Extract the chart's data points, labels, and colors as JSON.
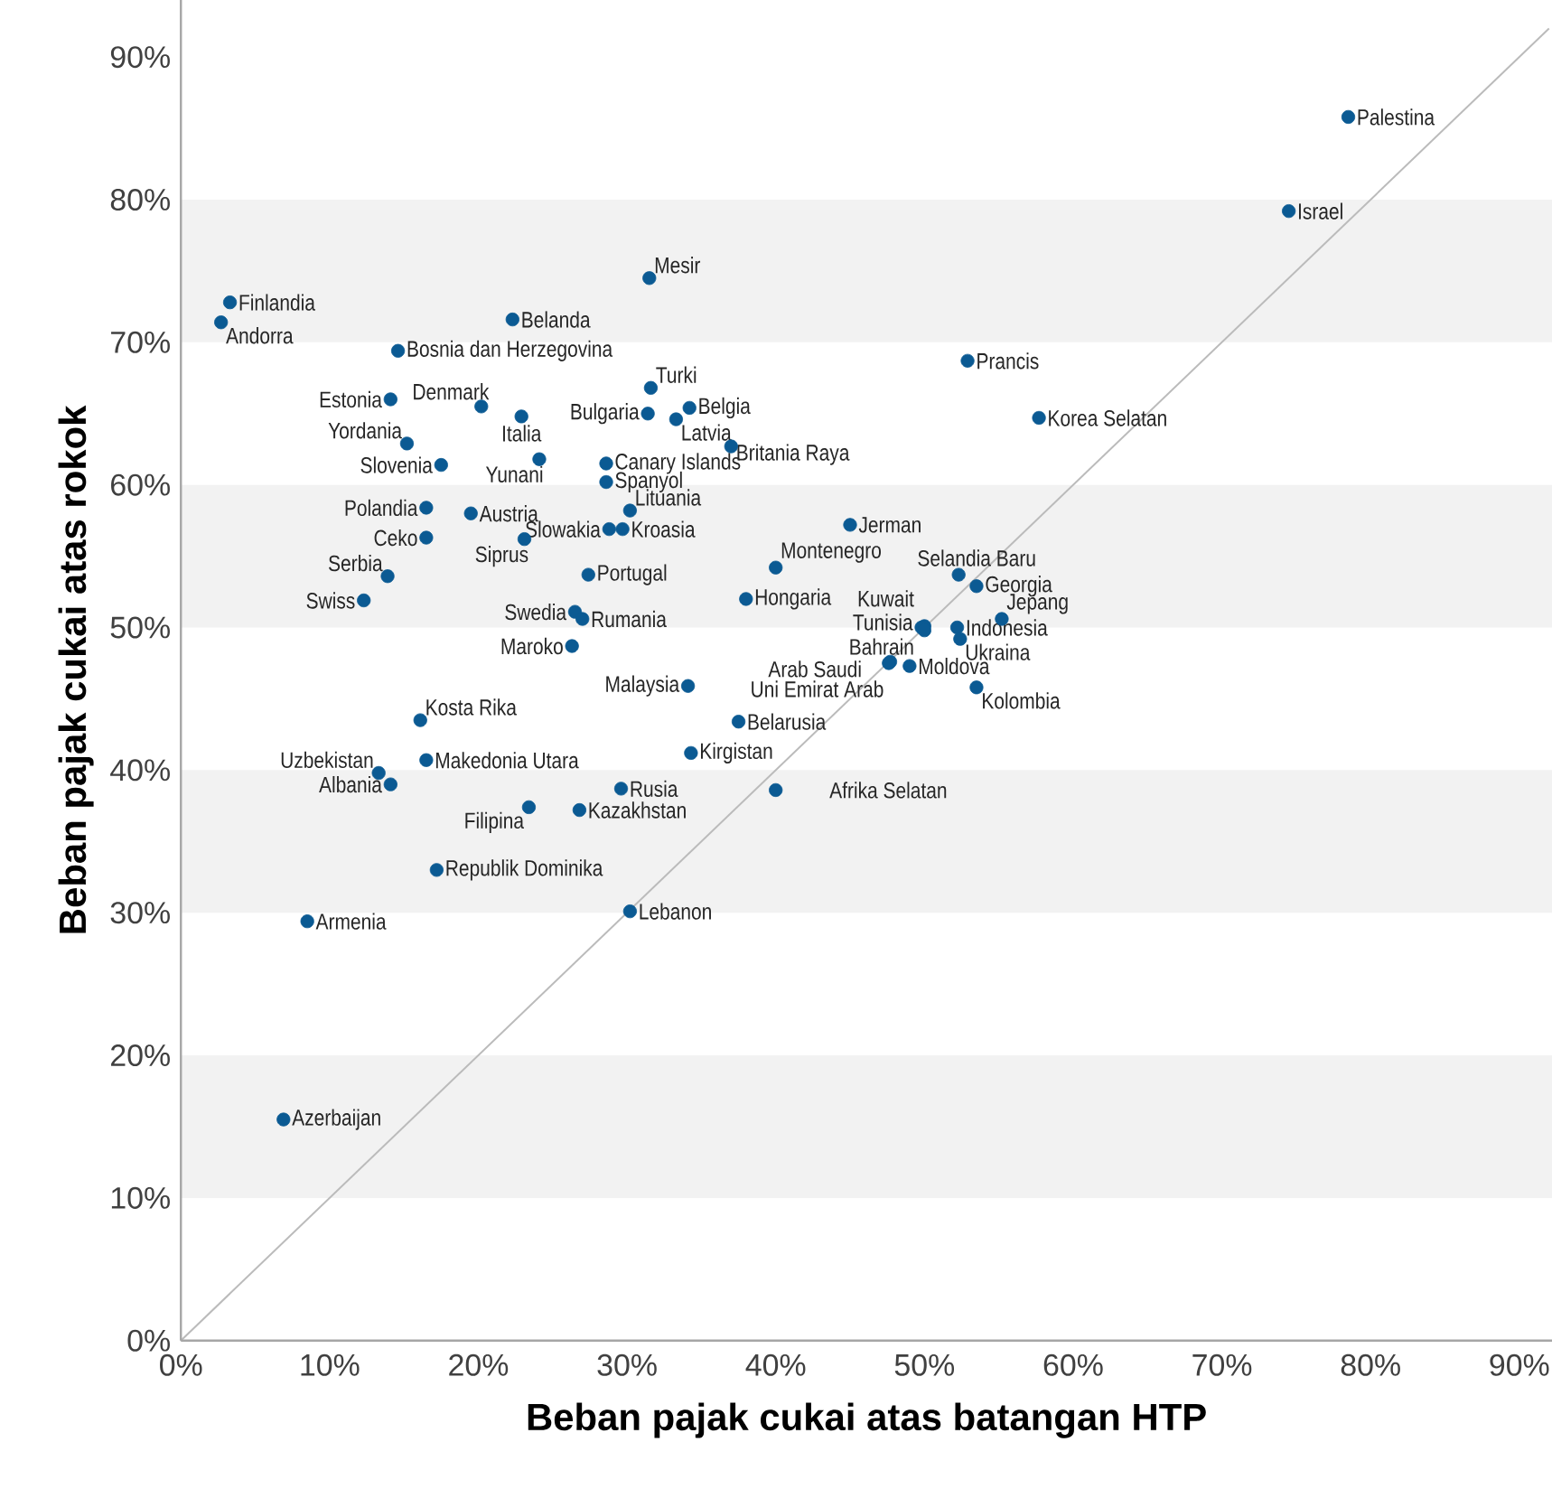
{
  "chart_data": {
    "type": "scatter",
    "xlabel": "Beban pajak cukai atas batangan HTP",
    "ylabel": "Beban pajak cukai atas rokok",
    "xlim": [
      0,
      92.2
    ],
    "ylim": [
      0,
      94
    ],
    "xticks": [
      {
        "value": 0,
        "label": "0%"
      },
      {
        "value": 10,
        "label": "10%"
      },
      {
        "value": 20,
        "label": "20%"
      },
      {
        "value": 30,
        "label": "30%"
      },
      {
        "value": 40,
        "label": "40%"
      },
      {
        "value": 50,
        "label": "50%"
      },
      {
        "value": 60,
        "label": "60%"
      },
      {
        "value": 70,
        "label": "70%"
      },
      {
        "value": 80,
        "label": "80%"
      },
      {
        "value": 90,
        "label": "90%"
      }
    ],
    "yticks": [
      {
        "value": 0,
        "label": "0%"
      },
      {
        "value": 10,
        "label": "10%"
      },
      {
        "value": 20,
        "label": "20%"
      },
      {
        "value": 30,
        "label": "30%"
      },
      {
        "value": 40,
        "label": "40%"
      },
      {
        "value": 50,
        "label": "50%"
      },
      {
        "value": 60,
        "label": "60%"
      },
      {
        "value": 70,
        "label": "70%"
      },
      {
        "value": 80,
        "label": "80%"
      },
      {
        "value": 90,
        "label": "90%"
      }
    ],
    "grid": false,
    "bands": [
      {
        "axis": "y",
        "from": 10,
        "to": 20,
        "color": "#f2f2f2"
      },
      {
        "axis": "y",
        "from": 30,
        "to": 40,
        "color": "#f2f2f2"
      },
      {
        "axis": "y",
        "from": 50,
        "to": 60,
        "color": "#f2f2f2"
      },
      {
        "axis": "y",
        "from": 70,
        "to": 80,
        "color": "#f2f2f2"
      }
    ],
    "series": [
      {
        "color": "#0b5a93",
        "x": [
          78.5,
          74.5,
          3.3,
          2.7,
          31.5,
          22.3,
          14.6,
          52.9,
          14.1,
          20.2,
          22.9,
          31.6,
          31.4,
          34.2,
          33.3,
          57.7,
          15.2,
          17.5,
          24.1,
          37.0,
          28.6,
          28.6,
          16.5,
          19.5,
          30.2,
          45.0,
          16.5,
          23.1,
          28.8,
          29.7,
          52.3,
          40.0,
          27.4,
          53.5,
          13.9,
          12.3,
          38.0,
          50.0,
          49.8,
          50.0,
          52.2,
          52.4,
          55.2,
          47.7,
          47.6,
          49.0,
          53.5,
          26.3,
          26.5,
          27.0,
          34.1,
          16.1,
          37.5,
          13.3,
          14.1,
          16.5,
          34.3,
          23.4,
          29.6,
          26.8,
          40.0,
          17.2,
          8.5,
          30.2,
          6.9
        ],
        "values": [
          85.8,
          79.2,
          72.8,
          71.4,
          74.5,
          71.6,
          69.4,
          68.7,
          66.0,
          65.5,
          64.8,
          66.8,
          65.0,
          65.4,
          64.6,
          64.7,
          62.9,
          61.4,
          61.8,
          62.7,
          61.5,
          60.2,
          58.4,
          58.0,
          58.2,
          57.2,
          56.3,
          56.2,
          56.9,
          56.9,
          53.7,
          54.2,
          53.7,
          52.9,
          53.6,
          51.9,
          52.0,
          50.1,
          50.0,
          49.8,
          50.0,
          49.2,
          50.6,
          47.6,
          47.5,
          47.3,
          45.8,
          48.7,
          51.1,
          50.6,
          45.9,
          43.5,
          43.4,
          39.8,
          39.0,
          40.7,
          41.2,
          37.4,
          38.7,
          37.2,
          38.6,
          33.0,
          29.4,
          30.1,
          15.5
        ]
      },
      {
        "type": "line",
        "color": "#bbbbbb",
        "x": [
          0,
          92
        ],
        "values": [
          0,
          92
        ]
      }
    ],
    "annotations": [
      {
        "text": "Palestina",
        "x": 78.5,
        "y": 85.8
      },
      {
        "text": "Israel",
        "x": 74.5,
        "y": 79.2
      },
      {
        "text": "Finlandia",
        "x": 3.3,
        "y": 72.8
      },
      {
        "text": "Andorra",
        "x": 2.7,
        "y": 71.4
      },
      {
        "text": "Mesir",
        "x": 31.5,
        "y": 74.5
      },
      {
        "text": "Belanda",
        "x": 22.3,
        "y": 71.6
      },
      {
        "text": "Bosnia dan Herzegovina",
        "x": 14.6,
        "y": 69.4
      },
      {
        "text": "Prancis",
        "x": 52.9,
        "y": 68.7
      },
      {
        "text": "Estonia",
        "x": 14.1,
        "y": 66.0
      },
      {
        "text": "Denmark",
        "x": 20.2,
        "y": 65.5
      },
      {
        "text": "Italia",
        "x": 22.9,
        "y": 64.8
      },
      {
        "text": "Turki",
        "x": 31.6,
        "y": 66.8
      },
      {
        "text": "Bulgaria",
        "x": 31.4,
        "y": 65.0
      },
      {
        "text": "Belgia",
        "x": 34.2,
        "y": 65.4
      },
      {
        "text": "Latvia",
        "x": 33.3,
        "y": 64.6
      },
      {
        "text": "Korea Selatan",
        "x": 57.7,
        "y": 64.7
      },
      {
        "text": "Yordania",
        "x": 15.2,
        "y": 62.9
      },
      {
        "text": "Slovenia",
        "x": 17.5,
        "y": 61.4
      },
      {
        "text": "Yunani",
        "x": 24.1,
        "y": 61.8
      },
      {
        "text": "Britania Raya",
        "x": 37.0,
        "y": 62.7
      },
      {
        "text": "Canary Islands",
        "x": 28.6,
        "y": 61.5
      },
      {
        "text": "Spanyol",
        "x": 28.6,
        "y": 60.2
      },
      {
        "text": "Polandia",
        "x": 16.5,
        "y": 58.4
      },
      {
        "text": "Austria",
        "x": 19.5,
        "y": 58.0
      },
      {
        "text": "Lituania",
        "x": 30.2,
        "y": 58.2
      },
      {
        "text": "Jerman",
        "x": 45.0,
        "y": 57.2
      },
      {
        "text": "Ceko",
        "x": 16.5,
        "y": 56.3
      },
      {
        "text": "Siprus",
        "x": 23.1,
        "y": 56.2
      },
      {
        "text": "Slowakia",
        "x": 28.8,
        "y": 56.9
      },
      {
        "text": "Kroasia",
        "x": 29.7,
        "y": 56.9
      },
      {
        "text": "Selandia Baru",
        "x": 52.3,
        "y": 53.7
      },
      {
        "text": "Montenegro",
        "x": 40.0,
        "y": 54.2
      },
      {
        "text": "Portugal",
        "x": 27.4,
        "y": 53.7
      },
      {
        "text": "Georgia",
        "x": 53.5,
        "y": 52.9
      },
      {
        "text": "Serbia",
        "x": 13.9,
        "y": 53.6
      },
      {
        "text": "Swiss",
        "x": 12.3,
        "y": 51.9
      },
      {
        "text": "Hongaria",
        "x": 38.0,
        "y": 52.0
      },
      {
        "text": "Kuwait",
        "x": 50.0,
        "y": 50.1
      },
      {
        "text": "Tunisia",
        "x": 49.8,
        "y": 50.0
      },
      {
        "text": "Bahrain",
        "x": 50.0,
        "y": 49.8
      },
      {
        "text": "Indonesia",
        "x": 52.2,
        "y": 50.0
      },
      {
        "text": "Ukraina",
        "x": 52.4,
        "y": 49.2
      },
      {
        "text": "Jepang",
        "x": 55.2,
        "y": 50.6
      },
      {
        "text": "Arab Saudi",
        "x": 47.7,
        "y": 47.6
      },
      {
        "text": "Uni Emirat Arab",
        "x": 47.6,
        "y": 47.5
      },
      {
        "text": "Moldova",
        "x": 49.0,
        "y": 47.3
      },
      {
        "text": "Kolombia",
        "x": 53.5,
        "y": 45.8
      },
      {
        "text": "Maroko",
        "x": 26.3,
        "y": 48.7
      },
      {
        "text": "Swedia",
        "x": 26.5,
        "y": 51.1
      },
      {
        "text": "Rumania",
        "x": 27.0,
        "y": 50.6
      },
      {
        "text": "Malaysia",
        "x": 34.1,
        "y": 45.9
      },
      {
        "text": "Kosta Rika",
        "x": 16.1,
        "y": 43.5
      },
      {
        "text": "Belarusia",
        "x": 37.5,
        "y": 43.4
      },
      {
        "text": "Uzbekistan",
        "x": 13.3,
        "y": 39.8
      },
      {
        "text": "Albania",
        "x": 14.1,
        "y": 39.0
      },
      {
        "text": "Makedonia Utara",
        "x": 16.5,
        "y": 40.7
      },
      {
        "text": "Kirgistan",
        "x": 34.3,
        "y": 41.2
      },
      {
        "text": "Filipina",
        "x": 23.4,
        "y": 37.4
      },
      {
        "text": "Rusia",
        "x": 29.6,
        "y": 38.7
      },
      {
        "text": "Kazakhstan",
        "x": 26.8,
        "y": 37.2
      },
      {
        "text": "Afrika Selatan",
        "x": 40.0,
        "y": 38.6
      },
      {
        "text": "Republik Dominika",
        "x": 17.2,
        "y": 33.0
      },
      {
        "text": "Armenia",
        "x": 8.5,
        "y": 29.4
      },
      {
        "text": "Lebanon",
        "x": 30.2,
        "y": 30.1
      },
      {
        "text": "Azerbaijan",
        "x": 6.9,
        "y": 15.5
      }
    ]
  }
}
